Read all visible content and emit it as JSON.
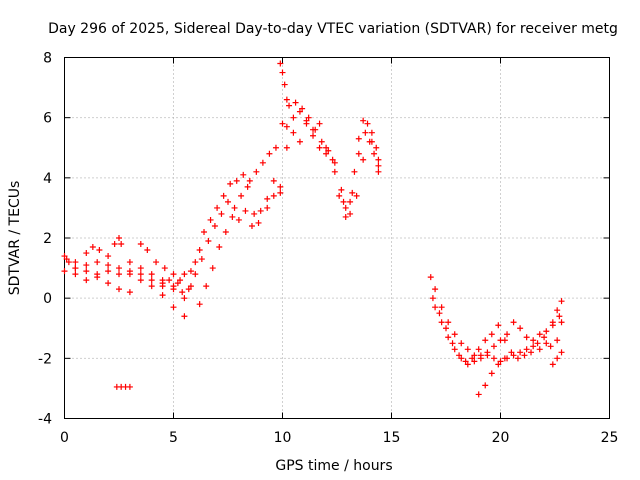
{
  "chart_data": {
    "type": "scatter",
    "title": "Day 296 of 2025, Sidereal Day-to-day VTEC variation (SDTVAR) for receiver metg",
    "xlabel": "GPS time / hours",
    "ylabel": "SDTVAR / TECUs",
    "xlim": [
      0,
      25
    ],
    "ylim": [
      -4,
      8
    ],
    "xticks": [
      0,
      5,
      10,
      15,
      20,
      25
    ],
    "yticks": [
      -4,
      -2,
      0,
      2,
      4,
      6,
      8
    ],
    "xtick_labels": [
      "0",
      "5",
      "10",
      "15",
      "20",
      "25"
    ],
    "ytick_labels": [
      "-4",
      "-2",
      "0",
      "2",
      "4",
      "6",
      "8"
    ],
    "grid": true,
    "legend": "none",
    "marker": "+",
    "series": [
      {
        "name": "metg",
        "color": "#ff0000",
        "tracks": [
          [
            [
              0.0,
              1.4
            ],
            [
              0.2,
              1.2
            ],
            [
              0.5,
              1.0
            ],
            [
              1.0,
              0.9
            ],
            [
              1.5,
              0.7
            ],
            [
              2.0,
              0.5
            ],
            [
              2.5,
              0.3
            ],
            [
              3.0,
              0.2
            ]
          ],
          [
            [
              0.0,
              0.9
            ],
            [
              0.5,
              0.8
            ],
            [
              1.0,
              0.6
            ],
            [
              1.5,
              0.8
            ],
            [
              2.0,
              0.9
            ],
            [
              2.5,
              0.8
            ],
            [
              3.0,
              0.9
            ],
            [
              3.5,
              0.8
            ],
            [
              4.0,
              0.6
            ],
            [
              4.5,
              0.4
            ],
            [
              5.0,
              0.3
            ]
          ],
          [
            [
              0.1,
              1.3
            ],
            [
              0.5,
              1.2
            ],
            [
              1.0,
              1.5
            ],
            [
              1.3,
              1.7
            ],
            [
              1.6,
              1.6
            ],
            [
              2.0,
              1.4
            ],
            [
              2.3,
              1.8
            ],
            [
              2.5,
              2.0
            ],
            [
              2.6,
              1.8
            ],
            [
              3.0,
              1.2
            ],
            [
              3.5,
              1.0
            ],
            [
              4.0,
              0.8
            ],
            [
              4.5,
              0.6
            ],
            [
              5.0,
              0.4
            ],
            [
              5.4,
              0.2
            ],
            [
              5.7,
              0.3
            ]
          ],
          [
            [
              0.5,
              1.0
            ],
            [
              1.0,
              1.1
            ],
            [
              1.5,
              1.2
            ],
            [
              2.0,
              1.1
            ],
            [
              2.5,
              1.0
            ],
            [
              3.0,
              0.8
            ],
            [
              3.5,
              0.6
            ],
            [
              4.0,
              0.4
            ],
            [
              4.5,
              0.1
            ],
            [
              5.0,
              -0.3
            ],
            [
              5.5,
              -0.6
            ]
          ],
          [
            [
              3.5,
              1.8
            ],
            [
              3.8,
              1.6
            ],
            [
              4.2,
              1.2
            ],
            [
              4.6,
              1.0
            ],
            [
              5.0,
              0.8
            ],
            [
              5.3,
              0.6
            ]
          ],
          [
            [
              2.4,
              -2.95
            ],
            [
              2.6,
              -2.95
            ],
            [
              2.8,
              -2.95
            ],
            [
              3.0,
              -2.95
            ]
          ],
          [
            [
              4.5,
              0.5
            ],
            [
              4.8,
              0.6
            ],
            [
              5.2,
              0.5
            ],
            [
              5.5,
              0.8
            ],
            [
              5.8,
              0.9
            ],
            [
              6.0,
              1.2
            ],
            [
              6.2,
              1.6
            ],
            [
              6.4,
              2.2
            ],
            [
              6.7,
              2.6
            ],
            [
              7.0,
              3.0
            ],
            [
              7.3,
              3.4
            ],
            [
              7.6,
              3.8
            ],
            [
              7.9,
              3.9
            ],
            [
              8.2,
              4.1
            ],
            [
              8.5,
              3.9
            ],
            [
              8.8,
              4.2
            ],
            [
              9.1,
              4.5
            ],
            [
              9.4,
              4.8
            ],
            [
              9.7,
              5.0
            ],
            [
              10.0,
              5.8
            ],
            [
              10.3,
              6.4
            ],
            [
              10.6,
              6.5
            ],
            [
              10.9,
              6.3
            ],
            [
              11.2,
              6.0
            ],
            [
              11.5,
              5.6
            ],
            [
              11.8,
              5.2
            ],
            [
              12.1,
              4.9
            ],
            [
              12.4,
              4.5
            ],
            [
              12.7,
              3.6
            ],
            [
              12.9,
              3.0
            ],
            [
              13.1,
              3.2
            ],
            [
              13.3,
              4.2
            ],
            [
              13.5,
              5.3
            ],
            [
              13.7,
              5.9
            ],
            [
              13.9,
              5.8
            ],
            [
              14.1,
              5.5
            ],
            [
              14.3,
              5.0
            ],
            [
              14.4,
              4.2
            ]
          ],
          [
            [
              5.5,
              0.0
            ],
            [
              5.8,
              0.4
            ],
            [
              6.0,
              0.8
            ],
            [
              6.3,
              1.3
            ],
            [
              6.6,
              1.9
            ],
            [
              6.9,
              2.4
            ],
            [
              7.2,
              2.8
            ],
            [
              7.5,
              3.2
            ],
            [
              7.8,
              3.0
            ],
            [
              8.1,
              3.4
            ],
            [
              8.4,
              3.7
            ],
            [
              8.7,
              2.8
            ],
            [
              9.0,
              2.9
            ],
            [
              9.3,
              3.3
            ],
            [
              9.6,
              3.9
            ],
            [
              9.9,
              3.5
            ],
            [
              10.2,
              5.0
            ],
            [
              10.5,
              5.5
            ],
            [
              10.8,
              5.2
            ],
            [
              11.1,
              5.8
            ],
            [
              11.4,
              5.4
            ],
            [
              11.7,
              5.0
            ],
            [
              12.0,
              4.8
            ],
            [
              12.4,
              4.2
            ],
            [
              12.8,
              3.2
            ],
            [
              13.1,
              2.8
            ],
            [
              13.4,
              3.4
            ],
            [
              13.7,
              4.6
            ],
            [
              14.0,
              5.2
            ],
            [
              14.2,
              4.8
            ],
            [
              14.4,
              4.4
            ]
          ],
          [
            [
              6.2,
              -0.2
            ],
            [
              6.5,
              0.4
            ],
            [
              6.8,
              1.0
            ],
            [
              7.1,
              1.7
            ],
            [
              7.4,
              2.2
            ],
            [
              7.7,
              2.7
            ],
            [
              8.0,
              2.6
            ],
            [
              8.3,
              2.9
            ],
            [
              8.6,
              2.4
            ],
            [
              8.9,
              2.5
            ],
            [
              9.3,
              3.0
            ],
            [
              9.6,
              3.4
            ],
            [
              9.9,
              3.7
            ],
            [
              10.2,
              5.7
            ],
            [
              10.5,
              6.0
            ],
            [
              10.8,
              6.2
            ],
            [
              11.1,
              5.9
            ],
            [
              11.4,
              5.6
            ],
            [
              11.7,
              5.8
            ],
            [
              12.0,
              5.0
            ],
            [
              12.3,
              4.6
            ],
            [
              12.6,
              3.4
            ],
            [
              12.9,
              2.7
            ],
            [
              13.2,
              3.5
            ],
            [
              13.5,
              4.8
            ],
            [
              13.8,
              5.5
            ],
            [
              14.1,
              5.2
            ],
            [
              14.4,
              4.6
            ]
          ],
          [
            [
              9.9,
              7.8
            ],
            [
              10.0,
              7.5
            ],
            [
              10.1,
              7.1
            ],
            [
              10.2,
              6.6
            ]
          ],
          [
            [
              16.8,
              0.7
            ],
            [
              17.0,
              0.3
            ],
            [
              17.3,
              -0.3
            ],
            [
              17.6,
              -0.8
            ],
            [
              17.9,
              -1.2
            ],
            [
              18.2,
              -1.5
            ],
            [
              18.5,
              -1.7
            ],
            [
              18.8,
              -1.9
            ],
            [
              19.1,
              -1.9
            ],
            [
              19.4,
              -1.8
            ],
            [
              19.7,
              -1.6
            ],
            [
              20.0,
              -1.4
            ],
            [
              20.3,
              -1.2
            ],
            [
              20.6,
              -0.8
            ],
            [
              20.9,
              -1.0
            ],
            [
              21.2,
              -1.3
            ],
            [
              21.5,
              -1.6
            ],
            [
              21.8,
              -1.7
            ],
            [
              22.1,
              -1.5
            ],
            [
              22.4,
              -0.9
            ],
            [
              22.6,
              -0.4
            ],
            [
              22.8,
              -0.1
            ]
          ],
          [
            [
              16.9,
              0.0
            ],
            [
              17.2,
              -0.5
            ],
            [
              17.5,
              -1.0
            ],
            [
              17.8,
              -1.5
            ],
            [
              18.1,
              -1.9
            ],
            [
              18.4,
              -2.1
            ],
            [
              18.7,
              -2.0
            ],
            [
              19.0,
              -1.7
            ],
            [
              19.3,
              -1.4
            ],
            [
              19.6,
              -1.2
            ],
            [
              19.9,
              -0.9
            ],
            [
              20.2,
              -1.4
            ],
            [
              20.5,
              -1.8
            ],
            [
              20.8,
              -2.0
            ],
            [
              21.1,
              -1.9
            ],
            [
              21.4,
              -1.8
            ],
            [
              21.7,
              -1.5
            ],
            [
              22.0,
              -1.3
            ],
            [
              22.3,
              -1.6
            ],
            [
              22.6,
              -1.4
            ],
            [
              22.8,
              -0.8
            ]
          ],
          [
            [
              17.0,
              -0.3
            ],
            [
              17.3,
              -0.8
            ],
            [
              17.6,
              -1.3
            ],
            [
              17.9,
              -1.7
            ],
            [
              18.2,
              -2.0
            ],
            [
              18.5,
              -2.2
            ],
            [
              18.8,
              -2.1
            ],
            [
              19.1,
              -2.0
            ],
            [
              19.4,
              -1.9
            ],
            [
              19.7,
              -2.0
            ],
            [
              20.0,
              -2.1
            ],
            [
              20.3,
              -2.0
            ],
            [
              20.6,
              -1.9
            ],
            [
              20.9,
              -1.8
            ],
            [
              21.2,
              -1.7
            ],
            [
              21.5,
              -1.4
            ],
            [
              21.8,
              -1.2
            ],
            [
              22.1,
              -1.1
            ],
            [
              22.4,
              -0.8
            ],
            [
              22.7,
              -0.6
            ]
          ],
          [
            [
              19.0,
              -3.2
            ],
            [
              19.3,
              -2.9
            ],
            [
              19.6,
              -2.5
            ],
            [
              19.9,
              -2.2
            ],
            [
              20.2,
              -2.0
            ]
          ],
          [
            [
              22.4,
              -2.2
            ],
            [
              22.6,
              -2.0
            ],
            [
              22.8,
              -1.8
            ]
          ]
        ]
      }
    ]
  }
}
